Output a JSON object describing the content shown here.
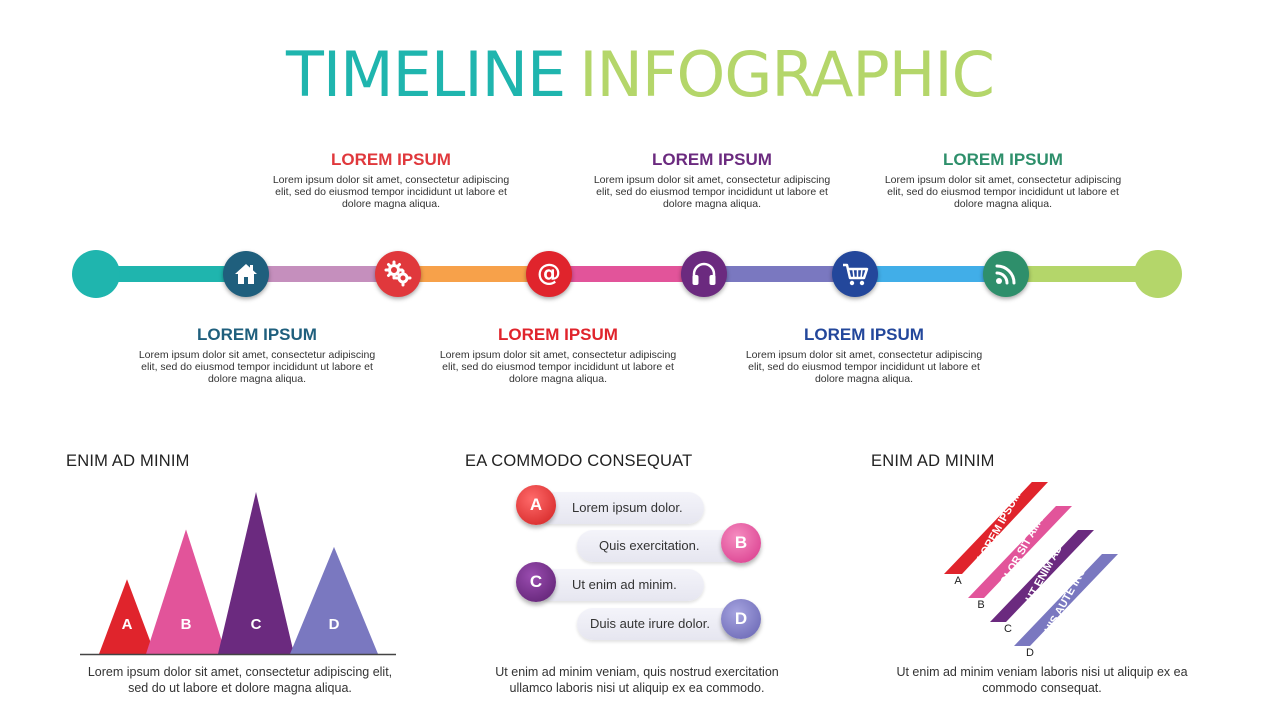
{
  "title": {
    "part1": "TIMELINE",
    "part2": "INFOGRAPHIC"
  },
  "timeline": {
    "blocks": [
      {
        "heading": "LOREM IPSUM",
        "color": "#e0383c",
        "text": "Lorem ipsum dolor sit amet, consectetur adipiscing elit, sed do eiusmod tempor incididunt ut labore et dolore magna aliqua."
      },
      {
        "heading": "LOREM IPSUM",
        "color": "#6b2a7f",
        "text": "Lorem ipsum dolor sit amet, consectetur adipiscing elit, sed do eiusmod tempor incididunt ut labore et dolore magna aliqua."
      },
      {
        "heading": "LOREM IPSUM",
        "color": "#2e8f6b",
        "text": "Lorem ipsum dolor sit amet, consectetur adipiscing elit, sed do eiusmod tempor incididunt ut labore et dolore magna aliqua."
      },
      {
        "heading": "LOREM IPSUM",
        "color": "#1f5f7d",
        "text": "Lorem ipsum dolor sit amet, consectetur adipiscing elit, sed do eiusmod tempor incididunt ut labore et dolore magna aliqua."
      },
      {
        "heading": "LOREM IPSUM",
        "color": "#e0242c",
        "text": "Lorem ipsum dolor sit amet, consectetur adipiscing elit, sed do eiusmod tempor incididunt ut labore et dolore magna aliqua."
      },
      {
        "heading": "LOREM IPSUM",
        "color": "#23479b",
        "text": "Lorem ipsum dolor sit amet, consectetur adipiscing elit, sed do eiusmod tempor incididunt ut labore et dolore magna aliqua."
      }
    ],
    "nodes": [
      {
        "icon": "home-icon",
        "color": "#1f5f7d"
      },
      {
        "icon": "gears-icon",
        "color": "#e0383c"
      },
      {
        "icon": "at-sign-icon",
        "color": "#e0242c"
      },
      {
        "icon": "headphones-icon",
        "color": "#6b2a7f"
      },
      {
        "icon": "shopping-cart-icon",
        "color": "#23479b"
      },
      {
        "icon": "rss-icon",
        "color": "#2e8f6b"
      }
    ],
    "segment_colors": [
      "#1fb5ae",
      "#c58fbd",
      "#f7a14a",
      "#e2549a",
      "#7a78c0",
      "#41aee8",
      "#b4d66a"
    ]
  },
  "sections": {
    "chart": {
      "heading": "ENIM AD MINIM",
      "caption_line1": "Lorem ipsum dolor sit amet, consectetur adipiscing elit,",
      "caption_line2": "sed do ut labore et dolore magna aliqua."
    },
    "steps": {
      "heading": "EA COMMODO CONSEQUAT",
      "items": [
        {
          "letter": "A",
          "text": "Lorem ipsum dolor.",
          "color": "#e0383c"
        },
        {
          "letter": "B",
          "text": "Quis exercitation.",
          "color": "#e2549a"
        },
        {
          "letter": "C",
          "text": "Ut enim ad minim.",
          "color": "#6b2a7f"
        },
        {
          "letter": "D",
          "text": "Duis aute irure dolor.",
          "color": "#7a78c0"
        }
      ],
      "caption_line1": "Ut enim ad minim veniam, quis nostrud exercitation",
      "caption_line2": "ullamco laboris nisi ut aliquip ex ea commodo."
    },
    "ribbons": {
      "heading": "ENIM AD MINIM",
      "items": [
        {
          "letter": "A",
          "text": "LOREM IPSUM",
          "color": "#e0242c"
        },
        {
          "letter": "B",
          "text": "DOLOR SIT AMTE",
          "color": "#e2549a"
        },
        {
          "letter": "C",
          "text": "UT ENIM AD",
          "color": "#6b2a7f"
        },
        {
          "letter": "D",
          "text": "DUIS AUTE IRURE",
          "color": "#7a78c0"
        }
      ],
      "caption_line1": "Ut enim ad minim veniam laboris nisi ut aliquip ex ea",
      "caption_line2": "commodo consequat."
    }
  },
  "chart_data": {
    "type": "bar",
    "categories": [
      "A",
      "B",
      "C",
      "D"
    ],
    "values": [
      3,
      5,
      6.5,
      4.3
    ],
    "colors": [
      "#e0242c",
      "#e2549a",
      "#6b2a7f",
      "#7a78c0"
    ]
  }
}
